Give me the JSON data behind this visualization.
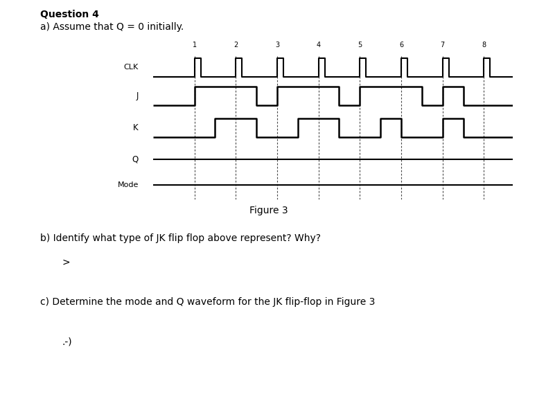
{
  "title_question": "Question 4",
  "subtitle": "a) Assume that Q = 0 initially.",
  "figure_label": "Figure 3",
  "part_b": "b) Identify what type of JK flip flop above represent? Why?",
  "part_c": "c) Determine the mode and Q waveform for the JK flip-flop in Figure 3",
  "answer_b": ">",
  "answer_c": ".-)",
  "bg_color": "#ffffff",
  "clk_label": "CLK",
  "j_label": "J",
  "k_label": "K",
  "q_label": "Q",
  "mode_label": "Mode",
  "clk_x": [
    0,
    1,
    1,
    1.15,
    1.15,
    2,
    2,
    2.15,
    2.15,
    3,
    3,
    3.15,
    3.15,
    4,
    4,
    4.15,
    4.15,
    5,
    5,
    5.15,
    5.15,
    6,
    6,
    6.15,
    6.15,
    7,
    7,
    7.15,
    7.15,
    8,
    8,
    8.15,
    8.15,
    8.7
  ],
  "clk_y": [
    0,
    0,
    1,
    1,
    0,
    0,
    1,
    1,
    0,
    0,
    1,
    1,
    0,
    0,
    1,
    1,
    0,
    0,
    1,
    1,
    0,
    0,
    1,
    1,
    0,
    0,
    1,
    1,
    0,
    0,
    1,
    1,
    0,
    0
  ],
  "j_x": [
    0,
    1,
    1,
    2.5,
    2.5,
    3,
    3,
    4.5,
    4.5,
    5,
    5,
    6.5,
    6.5,
    7,
    7,
    7.5,
    7.5,
    8.7
  ],
  "j_y": [
    0,
    0,
    1,
    1,
    0,
    0,
    1,
    1,
    0,
    0,
    1,
    1,
    0,
    0,
    1,
    1,
    0,
    0
  ],
  "k_x": [
    0,
    1.5,
    1.5,
    2.5,
    2.5,
    3.5,
    3.5,
    4.5,
    4.5,
    5.5,
    5.5,
    6,
    6,
    7,
    7,
    7.5,
    7.5,
    8.7
  ],
  "k_y": [
    0,
    0,
    1,
    1,
    0,
    0,
    1,
    1,
    0,
    0,
    1,
    1,
    0,
    0,
    1,
    1,
    0,
    0
  ],
  "dashed_x_positions": [
    1,
    2,
    3,
    4,
    5,
    6,
    7,
    8
  ],
  "xmin": 0,
  "xmax": 8.7
}
